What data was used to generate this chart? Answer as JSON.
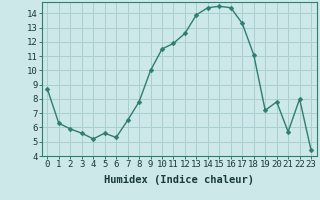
{
  "x": [
    0,
    1,
    2,
    3,
    4,
    5,
    6,
    7,
    8,
    9,
    10,
    11,
    12,
    13,
    14,
    15,
    16,
    17,
    18,
    19,
    20,
    21,
    22,
    23
  ],
  "y": [
    8.7,
    6.3,
    5.9,
    5.6,
    5.2,
    5.6,
    5.3,
    6.5,
    7.8,
    10.0,
    11.5,
    11.9,
    12.6,
    13.9,
    14.4,
    14.5,
    14.4,
    13.3,
    11.1,
    7.2,
    7.8,
    5.7,
    8.0,
    4.4
  ],
  "line_color": "#2e7d6e",
  "marker": "D",
  "marker_size": 2.5,
  "bg_color": "#cce8e8",
  "grid_color": "#aacfcf",
  "xlabel": "Humidex (Indice chaleur)",
  "xlim": [
    -0.5,
    23.5
  ],
  "ylim": [
    4,
    14.8
  ],
  "yticks": [
    4,
    5,
    6,
    7,
    8,
    9,
    10,
    11,
    12,
    13,
    14
  ],
  "xticks": [
    0,
    1,
    2,
    3,
    4,
    5,
    6,
    7,
    8,
    9,
    10,
    11,
    12,
    13,
    14,
    15,
    16,
    17,
    18,
    19,
    20,
    21,
    22,
    23
  ],
  "xlabel_fontsize": 7.5,
  "tick_fontsize": 6.5,
  "line_width": 1.0,
  "spine_color": "#2e7d6e",
  "label_color": "#1a3a3a"
}
